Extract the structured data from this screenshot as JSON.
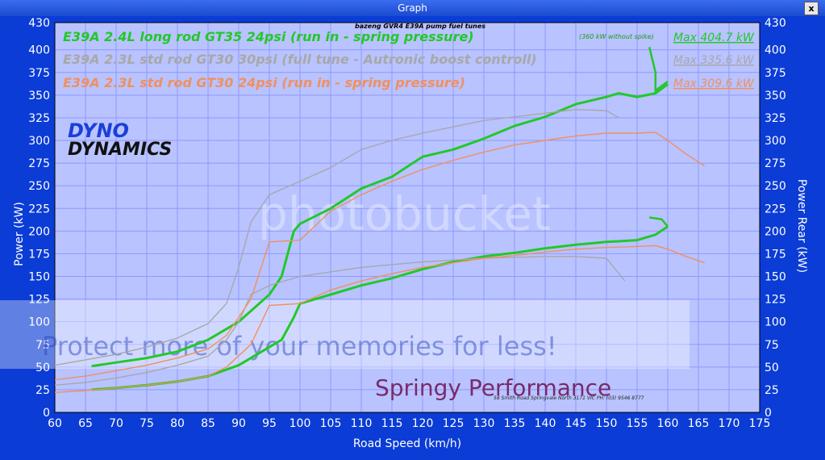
{
  "window": {
    "title": "Graph",
    "close_label": "x"
  },
  "annotations": {
    "top_note": "bazeng GVR4 E39A pump fuel tunes",
    "spike_note": "(360 kW without spike)",
    "logo_line1": "DYNO",
    "logo_line2": "DYNAMICS",
    "watermark_top": "photobucket",
    "watermark_bottom": "Protect more of your memories for less!",
    "shop_name": "Springy Performance",
    "shop_address": "58 Smith Road Springvale North 3171 VIC    PH: (03) 9546 8777"
  },
  "chart_data": {
    "type": "line",
    "xlabel": "Road Speed (km/h)",
    "ylabel": "Power (kW)",
    "y2label": "Power Rear (kW)",
    "xlim": [
      60,
      175
    ],
    "ylim": [
      0,
      430
    ],
    "xticks": [
      60,
      65,
      70,
      75,
      80,
      85,
      90,
      95,
      100,
      105,
      110,
      115,
      120,
      125,
      130,
      135,
      140,
      145,
      150,
      155,
      160,
      165,
      170,
      175
    ],
    "yticks": [
      0,
      25,
      50,
      75,
      100,
      125,
      150,
      175,
      200,
      225,
      250,
      275,
      300,
      325,
      350,
      375,
      400,
      430
    ],
    "grid": true,
    "legend_position": "top-left",
    "series": [
      {
        "name": "E39A 2.4L long rod GT35 24psi (run in  - spring pressure)",
        "max_label": "Max 404.7 kW",
        "color": "#22c82a",
        "power": [
          [
            66,
            51
          ],
          [
            70,
            55
          ],
          [
            75,
            60
          ],
          [
            80,
            67
          ],
          [
            85,
            80
          ],
          [
            90,
            100
          ],
          [
            95,
            130
          ],
          [
            97,
            150
          ],
          [
            98,
            175
          ],
          [
            99,
            200
          ],
          [
            100,
            208
          ],
          [
            105,
            225
          ],
          [
            110,
            247
          ],
          [
            115,
            260
          ],
          [
            120,
            282
          ],
          [
            125,
            290
          ],
          [
            130,
            302
          ],
          [
            135,
            316
          ],
          [
            140,
            326
          ],
          [
            145,
            340
          ],
          [
            150,
            348
          ],
          [
            152,
            352
          ],
          [
            155,
            348
          ],
          [
            158,
            352
          ],
          [
            160,
            362
          ]
        ],
        "rear": [
          [
            66,
            25
          ],
          [
            70,
            27
          ],
          [
            75,
            30
          ],
          [
            80,
            34
          ],
          [
            85,
            40
          ],
          [
            90,
            52
          ],
          [
            95,
            72
          ],
          [
            97,
            80
          ],
          [
            99,
            105
          ],
          [
            100,
            120
          ],
          [
            105,
            130
          ],
          [
            110,
            140
          ],
          [
            115,
            148
          ],
          [
            120,
            158
          ],
          [
            125,
            166
          ],
          [
            130,
            172
          ],
          [
            135,
            176
          ],
          [
            140,
            181
          ],
          [
            145,
            185
          ],
          [
            150,
            188
          ],
          [
            155,
            190
          ],
          [
            158,
            196
          ],
          [
            160,
            205
          ]
        ],
        "spike_power": [
          [
            157,
            403
          ],
          [
            158,
            375
          ],
          [
            158,
            355
          ],
          [
            160,
            365
          ]
        ],
        "spike_rear": [
          [
            157,
            215
          ],
          [
            159,
            213
          ],
          [
            160,
            205
          ]
        ]
      },
      {
        "name": "E39A 2.3L std rod GT30 30psi (full tune - Autronic boost controll)",
        "max_label": "Max 335.6 kW",
        "color": "#a8a8a8",
        "power": [
          [
            60,
            52
          ],
          [
            65,
            58
          ],
          [
            70,
            64
          ],
          [
            75,
            72
          ],
          [
            80,
            82
          ],
          [
            85,
            98
          ],
          [
            88,
            120
          ],
          [
            90,
            160
          ],
          [
            92,
            210
          ],
          [
            95,
            240
          ],
          [
            100,
            255
          ],
          [
            105,
            270
          ],
          [
            110,
            290
          ],
          [
            115,
            300
          ],
          [
            120,
            308
          ],
          [
            125,
            315
          ],
          [
            130,
            322
          ],
          [
            135,
            326
          ],
          [
            140,
            330
          ],
          [
            145,
            334
          ],
          [
            150,
            333
          ],
          [
            152,
            325
          ]
        ],
        "rear": [
          [
            60,
            30
          ],
          [
            65,
            33
          ],
          [
            70,
            38
          ],
          [
            75,
            44
          ],
          [
            80,
            52
          ],
          [
            85,
            62
          ],
          [
            88,
            80
          ],
          [
            90,
            100
          ],
          [
            92,
            130
          ],
          [
            95,
            140
          ],
          [
            100,
            150
          ],
          [
            105,
            155
          ],
          [
            110,
            160
          ],
          [
            115,
            163
          ],
          [
            120,
            166
          ],
          [
            125,
            168
          ],
          [
            130,
            170
          ],
          [
            135,
            171
          ],
          [
            140,
            172
          ],
          [
            145,
            172
          ],
          [
            150,
            170
          ],
          [
            153,
            145
          ]
        ]
      },
      {
        "name": "E39A 2.3L std rod GT30 24psi (run in  - spring pressure)",
        "max_label": "Max 309.6 kW",
        "color": "#f09060",
        "power": [
          [
            60,
            36
          ],
          [
            65,
            40
          ],
          [
            70,
            46
          ],
          [
            75,
            52
          ],
          [
            80,
            60
          ],
          [
            85,
            70
          ],
          [
            88,
            85
          ],
          [
            92,
            125
          ],
          [
            95,
            188
          ],
          [
            100,
            190
          ],
          [
            105,
            222
          ],
          [
            110,
            240
          ],
          [
            115,
            255
          ],
          [
            120,
            268
          ],
          [
            125,
            278
          ],
          [
            130,
            287
          ],
          [
            135,
            295
          ],
          [
            140,
            300
          ],
          [
            145,
            305
          ],
          [
            150,
            308
          ],
          [
            155,
            308
          ],
          [
            158,
            309
          ],
          [
            160,
            300
          ],
          [
            163,
            285
          ],
          [
            166,
            272
          ]
        ],
        "rear": [
          [
            60,
            22
          ],
          [
            65,
            24
          ],
          [
            70,
            27
          ],
          [
            75,
            30
          ],
          [
            80,
            34
          ],
          [
            85,
            40
          ],
          [
            88,
            50
          ],
          [
            92,
            75
          ],
          [
            95,
            118
          ],
          [
            100,
            120
          ],
          [
            105,
            135
          ],
          [
            110,
            145
          ],
          [
            115,
            153
          ],
          [
            120,
            160
          ],
          [
            125,
            165
          ],
          [
            130,
            170
          ],
          [
            135,
            173
          ],
          [
            140,
            177
          ],
          [
            145,
            180
          ],
          [
            150,
            182
          ],
          [
            155,
            183
          ],
          [
            158,
            184
          ],
          [
            160,
            180
          ],
          [
            163,
            172
          ],
          [
            166,
            165
          ]
        ]
      }
    ]
  }
}
